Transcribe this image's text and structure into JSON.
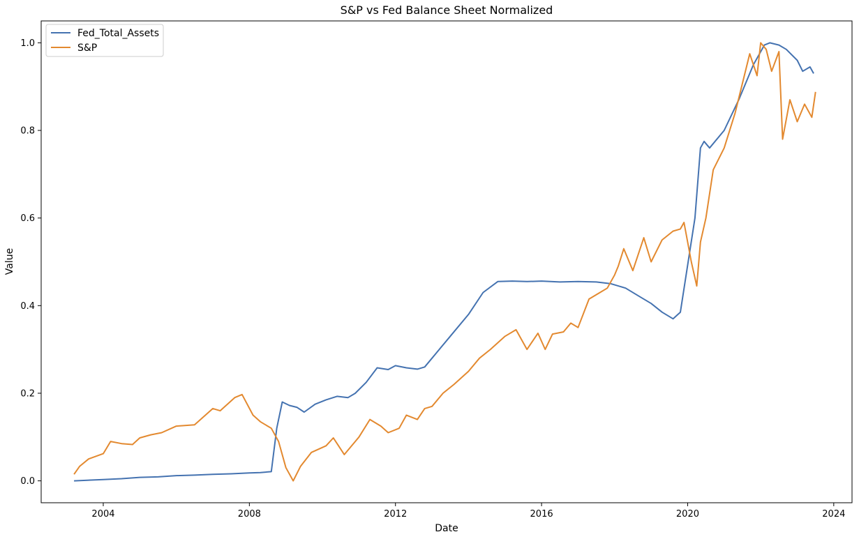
{
  "chart_data": {
    "type": "line",
    "title": "S&P vs Fed Balance Sheet Normalized",
    "xlabel": "Date",
    "ylabel": "Value",
    "xlim": [
      2002.3,
      2024.5
    ],
    "ylim": [
      -0.05,
      1.05
    ],
    "x_ticks": [
      2004,
      2008,
      2012,
      2016,
      2020,
      2024
    ],
    "x_tick_labels": [
      "2004",
      "2008",
      "2012",
      "2016",
      "2020",
      "2024"
    ],
    "y_ticks": [
      0.0,
      0.2,
      0.4,
      0.6,
      0.8,
      1.0
    ],
    "y_tick_labels": [
      "0.0",
      "0.2",
      "0.4",
      "0.6",
      "0.8",
      "1.0"
    ],
    "grid": false,
    "legend_position": "top-left",
    "series": [
      {
        "name": "Fed_Total_Assets",
        "color": "#4472b0",
        "x": [
          2003.2,
          2004.0,
          2004.5,
          2005.0,
          2005.5,
          2006.0,
          2006.5,
          2007.0,
          2007.5,
          2008.0,
          2008.3,
          2008.6,
          2008.75,
          2008.9,
          2009.1,
          2009.3,
          2009.5,
          2009.8,
          2010.1,
          2010.4,
          2010.7,
          2010.9,
          2011.2,
          2011.5,
          2011.8,
          2012.0,
          2012.3,
          2012.6,
          2012.8,
          2013.0,
          2013.5,
          2014.0,
          2014.4,
          2014.8,
          2015.2,
          2015.6,
          2016.0,
          2016.5,
          2017.0,
          2017.5,
          2017.9,
          2018.3,
          2018.7,
          2019.0,
          2019.3,
          2019.6,
          2019.8,
          2020.2,
          2020.35,
          2020.45,
          2020.6,
          2021.0,
          2021.4,
          2021.8,
          2022.1,
          2022.25,
          2022.5,
          2022.7,
          2023.0,
          2023.15,
          2023.35,
          2023.45
        ],
        "values": [
          0.0,
          0.003,
          0.005,
          0.008,
          0.009,
          0.012,
          0.013,
          0.015,
          0.016,
          0.018,
          0.019,
          0.021,
          0.12,
          0.18,
          0.172,
          0.168,
          0.157,
          0.175,
          0.185,
          0.193,
          0.19,
          0.2,
          0.225,
          0.258,
          0.254,
          0.263,
          0.258,
          0.255,
          0.26,
          0.28,
          0.33,
          0.38,
          0.43,
          0.455,
          0.456,
          0.455,
          0.456,
          0.454,
          0.455,
          0.454,
          0.45,
          0.44,
          0.42,
          0.405,
          0.385,
          0.37,
          0.385,
          0.6,
          0.76,
          0.775,
          0.76,
          0.8,
          0.87,
          0.95,
          0.995,
          1.0,
          0.995,
          0.985,
          0.96,
          0.935,
          0.945,
          0.93
        ]
      },
      {
        "name": "S&P",
        "color": "#e3892f",
        "x": [
          2003.2,
          2003.35,
          2003.6,
          2004.0,
          2004.2,
          2004.5,
          2004.8,
          2005.0,
          2005.3,
          2005.6,
          2006.0,
          2006.2,
          2006.5,
          2007.0,
          2007.2,
          2007.6,
          2007.8,
          2008.1,
          2008.3,
          2008.6,
          2008.8,
          2009.0,
          2009.2,
          2009.4,
          2009.7,
          2010.1,
          2010.3,
          2010.6,
          2011.0,
          2011.3,
          2011.6,
          2011.8,
          2012.1,
          2012.3,
          2012.6,
          2012.8,
          2013.0,
          2013.3,
          2013.6,
          2014.0,
          2014.3,
          2014.6,
          2015.0,
          2015.3,
          2015.6,
          2015.9,
          2016.1,
          2016.3,
          2016.6,
          2016.8,
          2017.0,
          2017.3,
          2017.6,
          2017.8,
          2018.0,
          2018.1,
          2018.25,
          2018.5,
          2018.8,
          2019.0,
          2019.3,
          2019.6,
          2019.8,
          2019.9,
          2020.1,
          2020.25,
          2020.35,
          2020.5,
          2020.7,
          2021.0,
          2021.3,
          2021.7,
          2021.9,
          2022.0,
          2022.15,
          2022.3,
          2022.5,
          2022.6,
          2022.8,
          2023.0,
          2023.2,
          2023.4,
          2023.5
        ],
        "values": [
          0.015,
          0.033,
          0.05,
          0.062,
          0.09,
          0.085,
          0.083,
          0.098,
          0.105,
          0.11,
          0.125,
          0.126,
          0.128,
          0.165,
          0.16,
          0.19,
          0.197,
          0.15,
          0.135,
          0.12,
          0.09,
          0.03,
          0.0,
          0.033,
          0.065,
          0.08,
          0.098,
          0.06,
          0.1,
          0.14,
          0.125,
          0.11,
          0.12,
          0.15,
          0.14,
          0.165,
          0.17,
          0.2,
          0.22,
          0.25,
          0.28,
          0.3,
          0.33,
          0.345,
          0.3,
          0.337,
          0.3,
          0.335,
          0.34,
          0.36,
          0.35,
          0.415,
          0.43,
          0.44,
          0.47,
          0.49,
          0.53,
          0.48,
          0.555,
          0.5,
          0.55,
          0.57,
          0.575,
          0.59,
          0.5,
          0.445,
          0.545,
          0.6,
          0.71,
          0.76,
          0.84,
          0.975,
          0.925,
          1.0,
          0.985,
          0.935,
          0.98,
          0.78,
          0.87,
          0.82,
          0.86,
          0.83,
          0.888
        ]
      }
    ]
  }
}
